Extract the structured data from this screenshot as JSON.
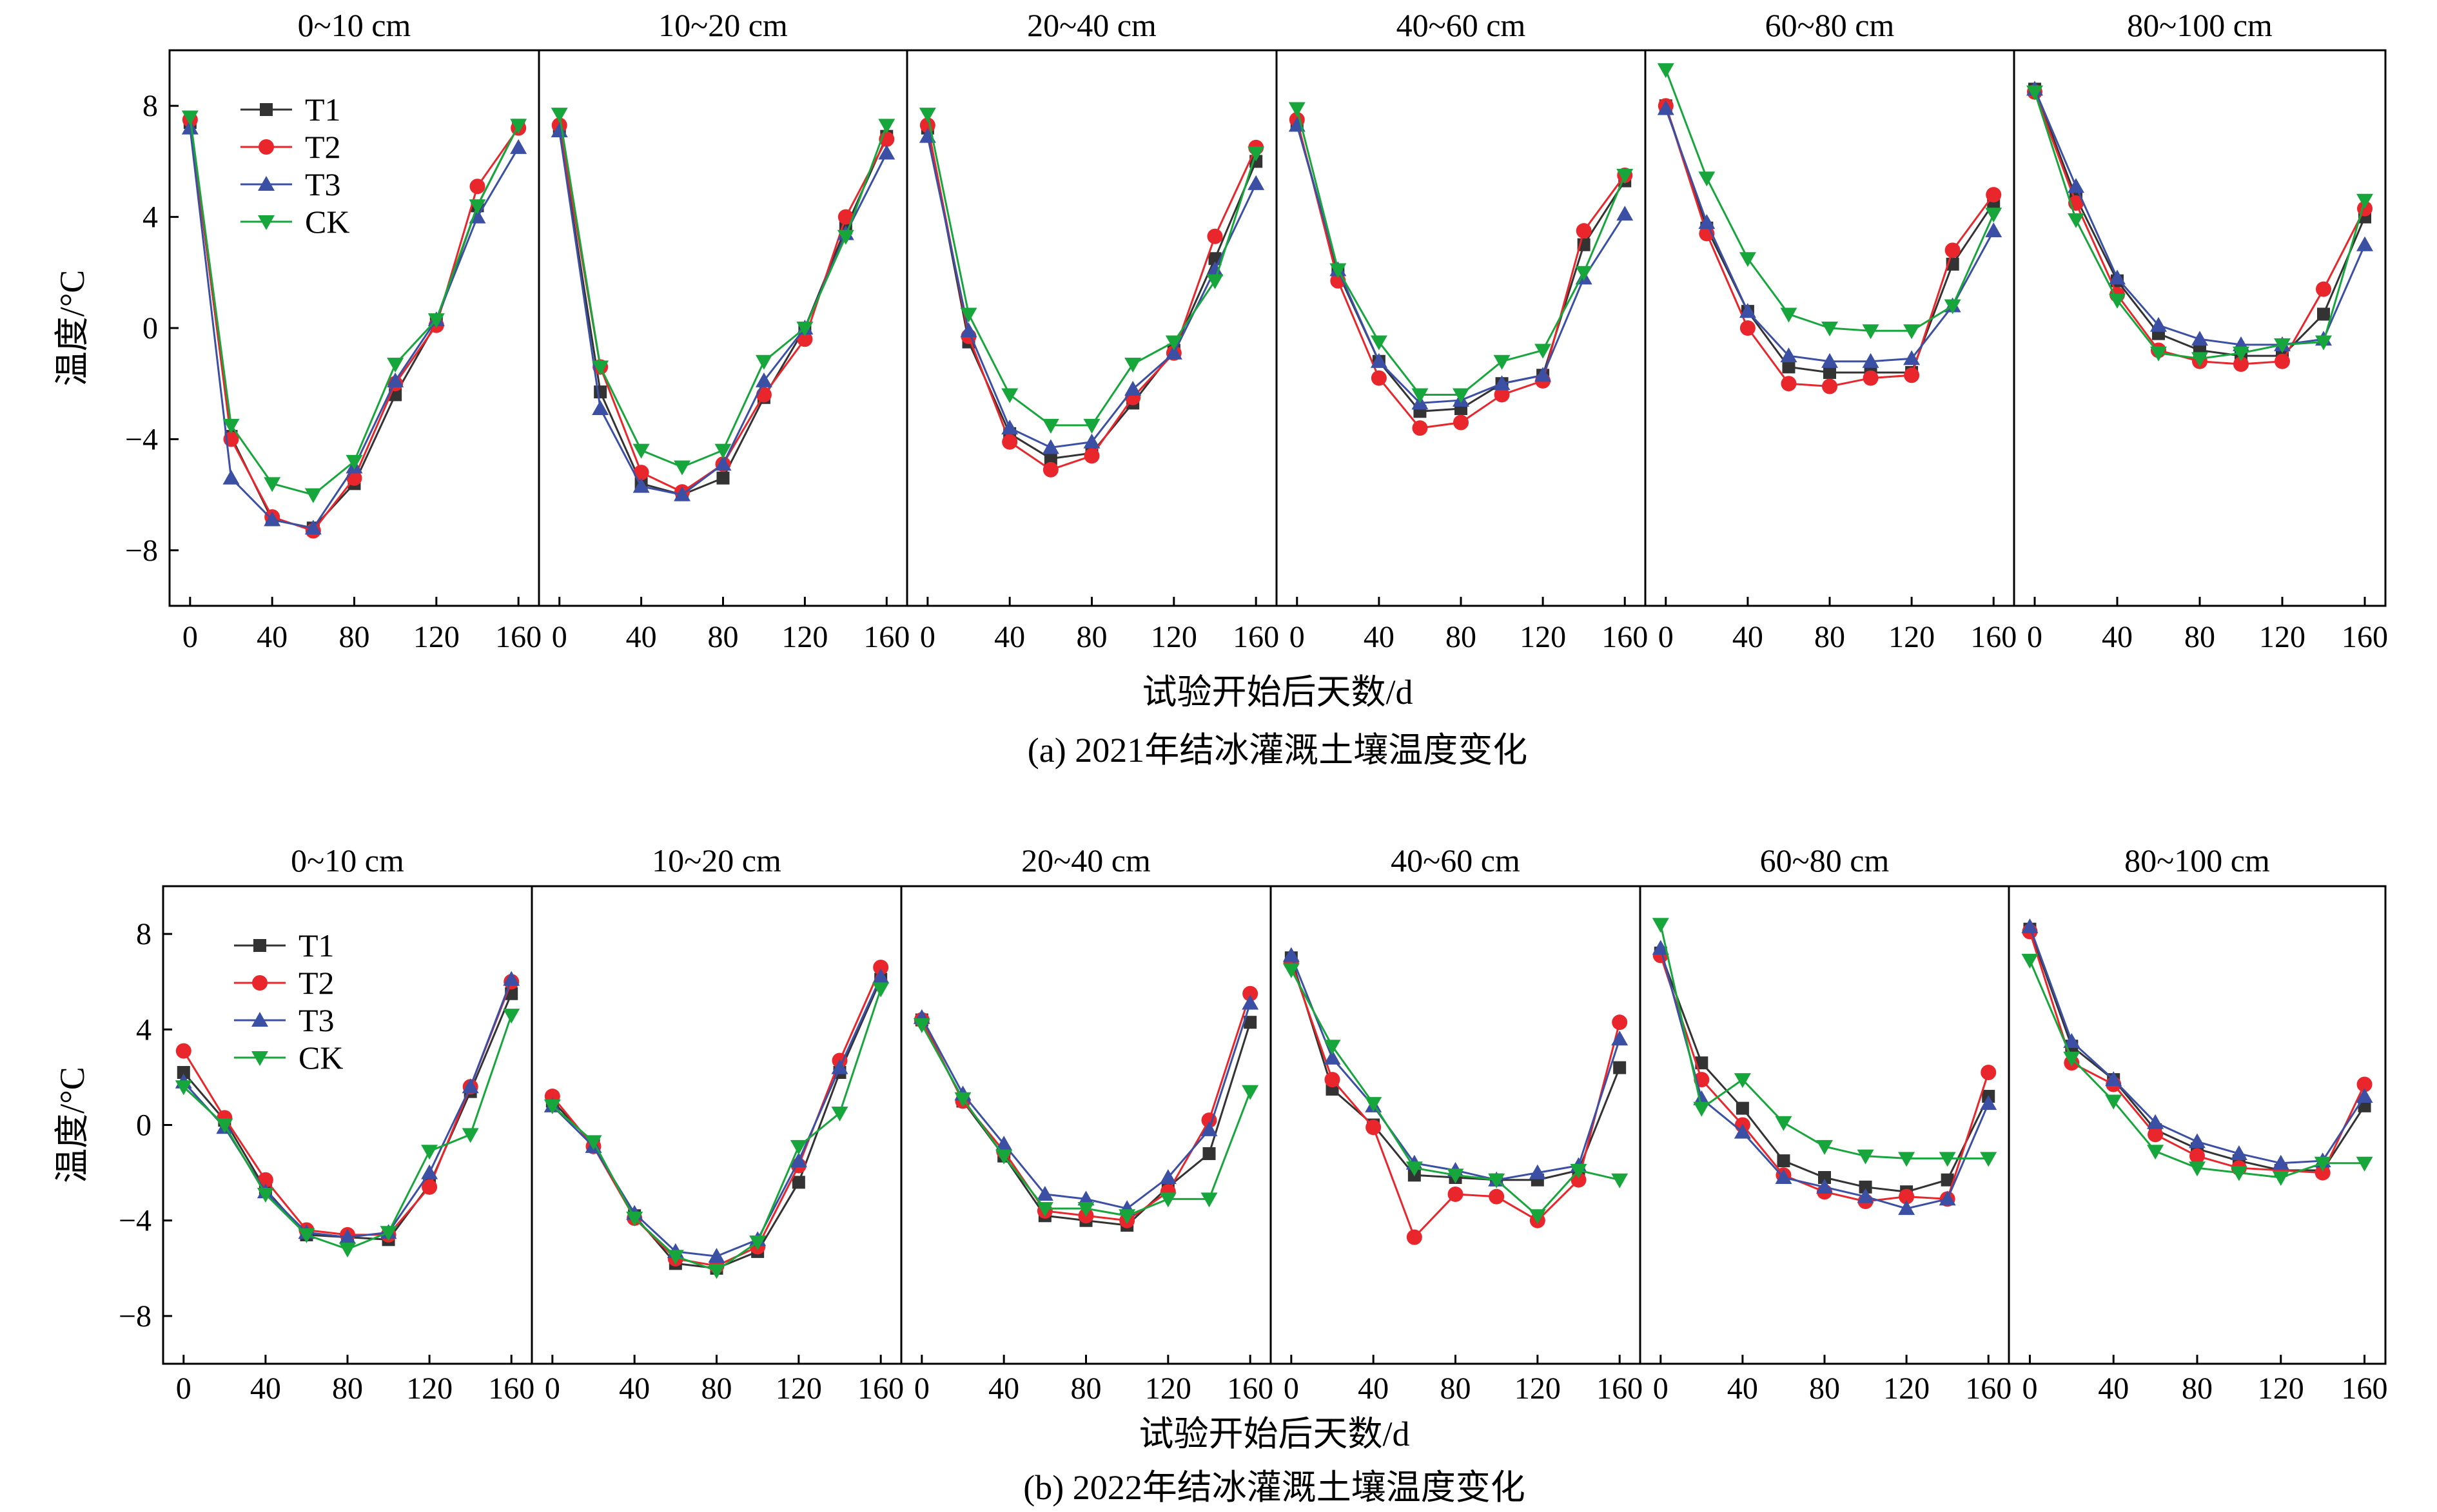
{
  "figure": {
    "ylabel": "温度/°C",
    "xlabel": "试验开始后天数/d"
  },
  "chart_data": [
    {
      "type": "line",
      "caption": "(a) 2021年结冰灌溉土壤温度变化",
      "ylabel": "温度/°C",
      "xlabel": "试验开始后天数/d",
      "ylim": [
        -10,
        10
      ],
      "yticks": [
        -8,
        -4,
        0,
        4,
        8
      ],
      "xlim": [
        -10,
        170
      ],
      "xticks": [
        0,
        40,
        80,
        120,
        160
      ],
      "x": [
        0,
        20,
        40,
        60,
        80,
        100,
        120,
        140,
        160
      ],
      "legend": [
        "T1",
        "T2",
        "T3",
        "CK"
      ],
      "colors": {
        "T1": "#333333",
        "T2": "#e8262b",
        "T3": "#3b50a4",
        "CK": "#17a63c"
      },
      "legend_position": "top-left",
      "panels": [
        {
          "title": "0~10 cm",
          "series": [
            {
              "name": "T1",
              "values": [
                7.4,
                -3.9,
                -6.9,
                -7.2,
                -5.6,
                -2.4,
                0.2,
                4.4,
                7.3
              ]
            },
            {
              "name": "T2",
              "values": [
                7.5,
                -4.0,
                -6.8,
                -7.3,
                -5.4,
                -2.0,
                0.1,
                5.1,
                7.2
              ]
            },
            {
              "name": "T3",
              "values": [
                7.2,
                -5.4,
                -6.9,
                -7.2,
                -5.0,
                -1.9,
                0.3,
                4.0,
                6.5
              ]
            },
            {
              "name": "CK",
              "values": [
                7.6,
                -3.5,
                -5.6,
                -6.0,
                -4.8,
                -1.3,
                0.3,
                4.4,
                7.3
              ]
            }
          ]
        },
        {
          "title": "10~20 cm",
          "series": [
            {
              "name": "T1",
              "values": [
                7.1,
                -2.3,
                -5.6,
                -6.0,
                -5.4,
                -2.5,
                0.0,
                3.6,
                6.9
              ]
            },
            {
              "name": "T2",
              "values": [
                7.3,
                -1.4,
                -5.2,
                -5.9,
                -4.9,
                -2.4,
                -0.4,
                4.0,
                6.8
              ]
            },
            {
              "name": "T3",
              "values": [
                7.1,
                -2.9,
                -5.7,
                -6.0,
                -4.9,
                -1.9,
                0.0,
                3.4,
                6.3
              ]
            },
            {
              "name": "CK",
              "values": [
                7.7,
                -1.4,
                -4.4,
                -5.0,
                -4.4,
                -1.2,
                0.0,
                3.3,
                7.3
              ]
            }
          ]
        },
        {
          "title": "20~40 cm",
          "series": [
            {
              "name": "T1",
              "values": [
                7.2,
                -0.5,
                -3.8,
                -4.7,
                -4.5,
                -2.7,
                -0.8,
                2.5,
                6.0
              ]
            },
            {
              "name": "T2",
              "values": [
                7.3,
                -0.3,
                -4.1,
                -5.1,
                -4.6,
                -2.5,
                -0.9,
                3.3,
                6.5
              ]
            },
            {
              "name": "T3",
              "values": [
                6.9,
                -0.1,
                -3.6,
                -4.3,
                -4.1,
                -2.2,
                -0.9,
                2.1,
                5.2
              ]
            },
            {
              "name": "CK",
              "values": [
                7.7,
                0.5,
                -2.4,
                -3.5,
                -3.5,
                -1.3,
                -0.5,
                1.7,
                6.3
              ]
            }
          ]
        },
        {
          "title": "40~60 cm",
          "series": [
            {
              "name": "T1",
              "values": [
                7.4,
                2.0,
                -1.2,
                -3.0,
                -2.9,
                -2.0,
                -1.7,
                3.0,
                5.3
              ]
            },
            {
              "name": "T2",
              "values": [
                7.5,
                1.7,
                -1.8,
                -3.6,
                -3.4,
                -2.4,
                -1.9,
                3.5,
                5.5
              ]
            },
            {
              "name": "T3",
              "values": [
                7.3,
                2.1,
                -1.2,
                -2.7,
                -2.6,
                -2.0,
                -1.7,
                1.8,
                4.1
              ]
            },
            {
              "name": "CK",
              "values": [
                7.9,
                2.1,
                -0.5,
                -2.4,
                -2.4,
                -1.2,
                -0.8,
                2.0,
                5.5
              ]
            }
          ]
        },
        {
          "title": "60~80 cm",
          "series": [
            {
              "name": "T1",
              "values": [
                8.0,
                3.6,
                0.6,
                -1.4,
                -1.6,
                -1.6,
                -1.6,
                2.3,
                4.5
              ]
            },
            {
              "name": "T2",
              "values": [
                8.0,
                3.4,
                0.0,
                -2.0,
                -2.1,
                -1.8,
                -1.7,
                2.8,
                4.8
              ]
            },
            {
              "name": "T3",
              "values": [
                7.9,
                3.8,
                0.6,
                -1.0,
                -1.2,
                -1.2,
                -1.1,
                0.8,
                3.5
              ]
            },
            {
              "name": "CK",
              "values": [
                9.3,
                5.4,
                2.5,
                0.5,
                0.0,
                -0.1,
                -0.1,
                0.8,
                4.1
              ]
            }
          ]
        },
        {
          "title": "80~100 cm",
          "series": [
            {
              "name": "T1",
              "values": [
                8.6,
                4.7,
                1.7,
                -0.2,
                -0.8,
                -1.0,
                -1.0,
                0.5,
                4.0
              ]
            },
            {
              "name": "T2",
              "values": [
                8.5,
                4.5,
                1.2,
                -0.8,
                -1.2,
                -1.3,
                -1.2,
                1.4,
                4.3
              ]
            },
            {
              "name": "T3",
              "values": [
                8.6,
                5.1,
                1.8,
                0.1,
                -0.4,
                -0.6,
                -0.6,
                -0.4,
                3.0
              ]
            },
            {
              "name": "CK",
              "values": [
                8.5,
                3.9,
                1.0,
                -0.9,
                -1.1,
                -0.9,
                -0.6,
                -0.5,
                4.6
              ]
            }
          ]
        }
      ]
    },
    {
      "type": "line",
      "caption": "(b) 2022年结冰灌溉土壤温度变化",
      "ylabel": "温度/°C",
      "xlabel": "试验开始后天数/d",
      "ylim": [
        -10,
        10
      ],
      "yticks": [
        -8,
        -4,
        0,
        4,
        8
      ],
      "xlim": [
        -10,
        170
      ],
      "xticks": [
        0,
        40,
        80,
        120,
        160
      ],
      "x": [
        0,
        20,
        40,
        60,
        80,
        100,
        120,
        140,
        160
      ],
      "legend": [
        "T1",
        "T2",
        "T3",
        "CK"
      ],
      "colors": {
        "T1": "#333333",
        "T2": "#e8262b",
        "T3": "#3b50a4",
        "CK": "#17a63c"
      },
      "legend_position": "top-left",
      "panels": [
        {
          "title": "0~10 cm",
          "series": [
            {
              "name": "T1",
              "values": [
                2.2,
                0.2,
                -2.7,
                -4.6,
                -4.7,
                -4.8,
                -2.5,
                1.4,
                5.5
              ]
            },
            {
              "name": "T2",
              "values": [
                3.1,
                0.3,
                -2.3,
                -4.4,
                -4.6,
                -4.6,
                -2.6,
                1.6,
                6.0
              ]
            },
            {
              "name": "T3",
              "values": [
                1.8,
                -0.1,
                -2.8,
                -4.5,
                -4.7,
                -4.5,
                -2.0,
                1.6,
                6.1
              ]
            },
            {
              "name": "CK",
              "values": [
                1.6,
                0.0,
                -2.9,
                -4.6,
                -5.2,
                -4.5,
                -1.1,
                -0.4,
                4.6
              ]
            }
          ]
        },
        {
          "title": "10~20 cm",
          "series": [
            {
              "name": "T1",
              "values": [
                1.0,
                -0.8,
                -3.8,
                -5.8,
                -6.0,
                -5.3,
                -2.4,
                2.2,
                6.1
              ]
            },
            {
              "name": "T2",
              "values": [
                1.2,
                -0.9,
                -3.9,
                -5.6,
                -5.9,
                -5.1,
                -1.7,
                2.7,
                6.6
              ]
            },
            {
              "name": "T3",
              "values": [
                0.8,
                -0.9,
                -3.7,
                -5.3,
                -5.5,
                -4.8,
                -1.5,
                2.4,
                6.2
              ]
            },
            {
              "name": "CK",
              "values": [
                0.8,
                -0.7,
                -3.9,
                -5.5,
                -6.1,
                -4.9,
                -0.9,
                0.5,
                5.7
              ]
            }
          ]
        },
        {
          "title": "20~40 cm",
          "series": [
            {
              "name": "T1",
              "values": [
                4.4,
                1.0,
                -1.3,
                -3.8,
                -4.0,
                -4.2,
                -2.6,
                -1.2,
                4.3
              ]
            },
            {
              "name": "T2",
              "values": [
                4.4,
                1.0,
                -1.1,
                -3.6,
                -3.8,
                -4.0,
                -2.8,
                0.2,
                5.5
              ]
            },
            {
              "name": "T3",
              "values": [
                4.5,
                1.3,
                -0.8,
                -2.9,
                -3.1,
                -3.5,
                -2.2,
                -0.2,
                5.1
              ]
            },
            {
              "name": "CK",
              "values": [
                4.2,
                1.1,
                -1.3,
                -3.5,
                -3.5,
                -3.8,
                -3.1,
                -3.1,
                1.4
              ]
            }
          ]
        },
        {
          "title": "40~60 cm",
          "series": [
            {
              "name": "T1",
              "values": [
                7.0,
                1.5,
                0.0,
                -2.1,
                -2.2,
                -2.3,
                -2.3,
                -1.9,
                2.4
              ]
            },
            {
              "name": "T2",
              "values": [
                6.8,
                1.9,
                -0.1,
                -4.7,
                -2.9,
                -3.0,
                -4.0,
                -2.3,
                4.3
              ]
            },
            {
              "name": "T3",
              "values": [
                7.1,
                2.8,
                0.8,
                -1.6,
                -1.9,
                -2.3,
                -2.0,
                -1.7,
                3.6
              ]
            },
            {
              "name": "CK",
              "values": [
                6.5,
                3.3,
                0.9,
                -1.8,
                -2.1,
                -2.3,
                -3.8,
                -1.9,
                -2.3
              ]
            }
          ]
        },
        {
          "title": "60~80 cm",
          "series": [
            {
              "name": "T1",
              "values": [
                7.2,
                2.6,
                0.7,
                -1.5,
                -2.2,
                -2.6,
                -2.8,
                -2.3,
                1.2
              ]
            },
            {
              "name": "T2",
              "values": [
                7.1,
                1.9,
                0.0,
                -2.1,
                -2.8,
                -3.2,
                -3.0,
                -3.1,
                2.2
              ]
            },
            {
              "name": "T3",
              "values": [
                7.4,
                1.1,
                -0.3,
                -2.2,
                -2.6,
                -3.0,
                -3.5,
                -3.1,
                0.9
              ]
            },
            {
              "name": "CK",
              "values": [
                8.4,
                0.7,
                1.9,
                0.1,
                -0.9,
                -1.3,
                -1.4,
                -1.4,
                -1.4
              ]
            }
          ]
        },
        {
          "title": "80~100 cm",
          "series": [
            {
              "name": "T1",
              "values": [
                8.2,
                3.3,
                1.9,
                -0.2,
                -1.0,
                -1.5,
                -1.9,
                -1.9,
                0.8
              ]
            },
            {
              "name": "T2",
              "values": [
                8.1,
                2.6,
                1.7,
                -0.4,
                -1.3,
                -1.8,
                -1.9,
                -2.0,
                1.7
              ]
            },
            {
              "name": "T3",
              "values": [
                8.3,
                3.5,
                1.9,
                0.1,
                -0.7,
                -1.2,
                -1.6,
                -1.5,
                1.2
              ]
            },
            {
              "name": "CK",
              "values": [
                6.9,
                2.8,
                1.0,
                -1.1,
                -1.8,
                -2.0,
                -2.2,
                -1.6,
                -1.6
              ]
            }
          ]
        }
      ]
    }
  ]
}
